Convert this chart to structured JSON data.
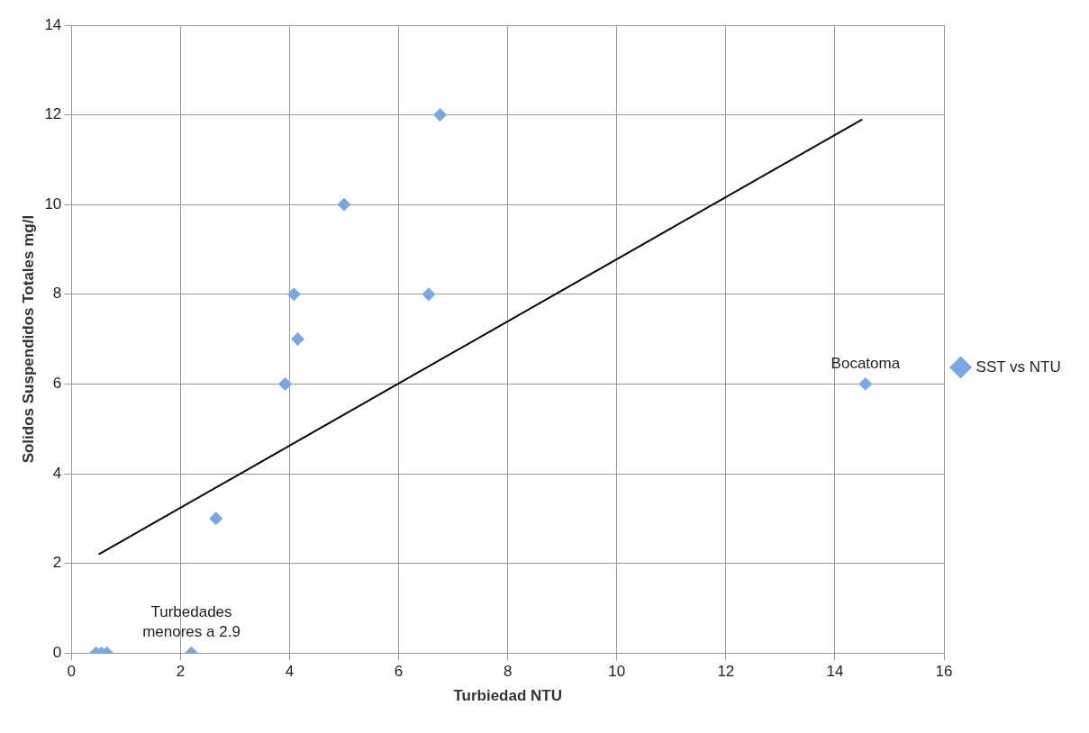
{
  "chart_data": {
    "type": "scatter",
    "xlabel": "Turbiedad NTU",
    "ylabel": "Solidos Suspendidos Totales mg/l",
    "xlim": [
      0,
      16
    ],
    "xticks": [
      0,
      2,
      4,
      6,
      8,
      10,
      12,
      14,
      16
    ],
    "ylim": [
      0,
      14
    ],
    "yticks": [
      0,
      2,
      4,
      6,
      8,
      10,
      12,
      14
    ],
    "grid": true,
    "legend": "right",
    "marker": "diamond",
    "series": [
      {
        "name": "SST vs NTU",
        "color": "#7ba7e1",
        "x": [
          0.45,
          0.55,
          0.65,
          2.2,
          2.65,
          3.92,
          4.15,
          4.08,
          5.0,
          6.55,
          6.76,
          14.56
        ],
        "values": [
          0,
          0,
          0,
          0,
          3,
          6,
          7,
          8,
          10,
          8,
          12,
          6
        ]
      },
      {
        "type": "line",
        "color": "#000000",
        "x": [
          0.5,
          14.5
        ],
        "values": [
          2.2,
          11.9
        ],
        "marker": "none"
      }
    ],
    "annotations": [
      {
        "text": "Bocatoma",
        "x": 14.56,
        "y": 6
      },
      {
        "text": "Turbedades menores a 2.9",
        "x": 2.2,
        "y": 0
      }
    ]
  }
}
